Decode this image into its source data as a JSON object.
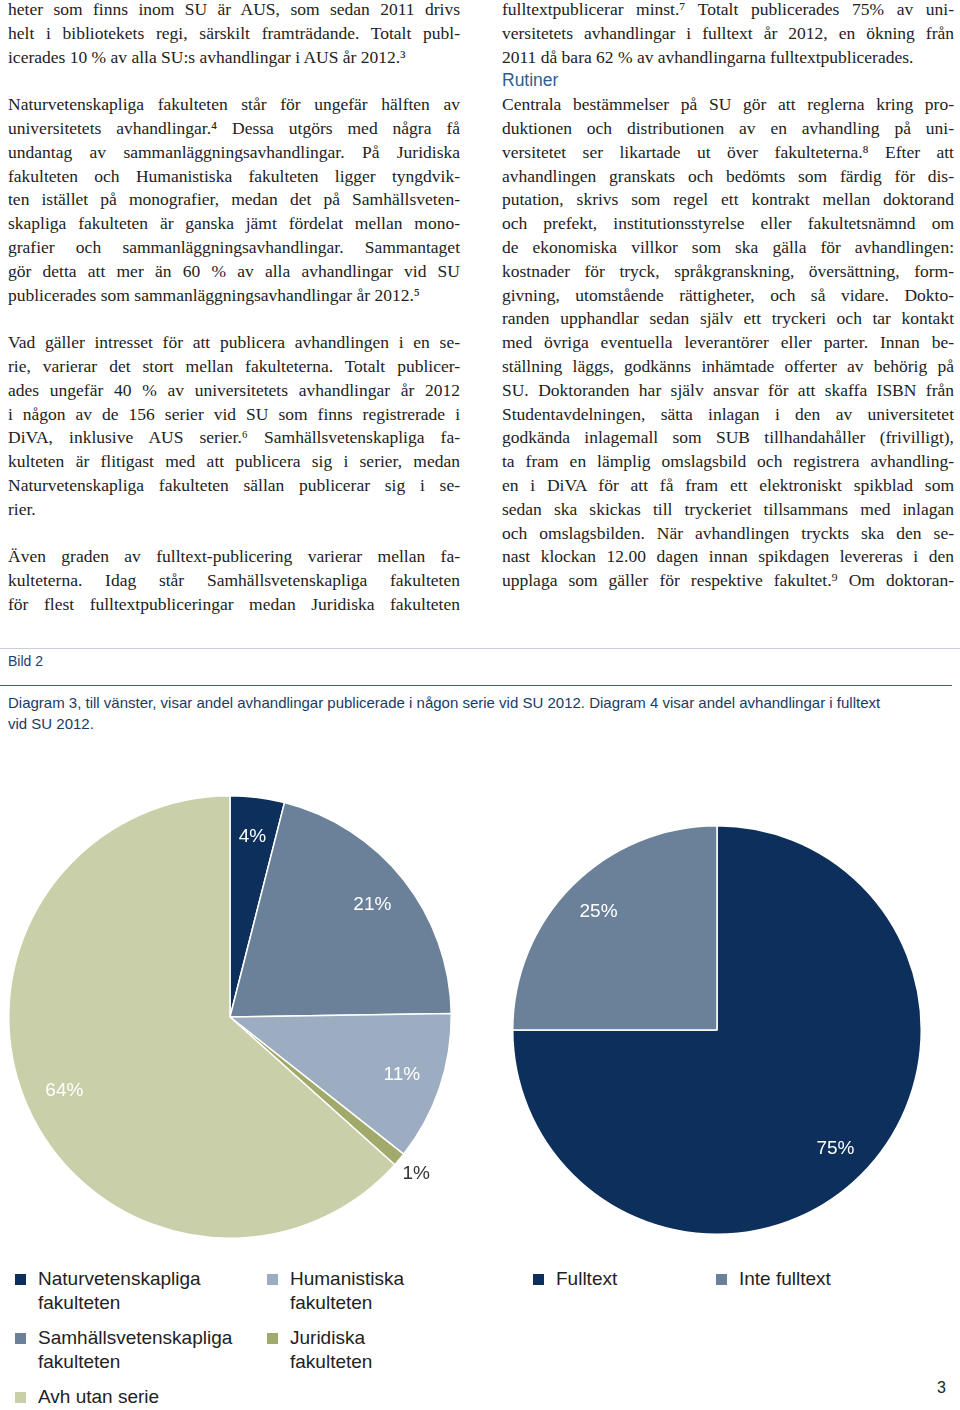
{
  "columns": [
    {
      "paragraphs": [
        {
          "lines": [
            "heter som finns inom SU är AUS, som sedan 2011 drivs",
            "helt i bibliotekets regi, särskilt framträdande. Totalt publ-",
            "icerades 10 % av alla SU:s avhandlingar i AUS år 2012.³"
          ]
        },
        {
          "lines": [
            "Naturvetenskapliga fakulteten står för ungefär hälften av",
            "universitetets avhandlingar.⁴ Dessa utgörs med några få",
            "undantag av sammanläggningsavhandlingar. På Juridiska",
            "fakulteten och Humanistiska fakulteten ligger tyngdvik-",
            "ten istället på monografier, medan det på Samhällsveten-",
            "skapliga fakulteten är ganska jämt fördelat mellan mono-",
            "grafier och sammanläggningsavhandlingar. Sammantaget",
            "gör detta att mer än 60 % av alla avhandlingar vid SU",
            "publicerades som sammanläggningsavhandlingar år 2012.⁵"
          ]
        },
        {
          "lines": [
            "Vad gäller intresset för att publicera avhandlingen i en se-",
            "rie, varierar det stort mellan fakulteterna. Totalt publicer-",
            "ades ungefär 40 % av universitetets avhandlingar år 2012",
            "i någon av de 156 serier vid SU som finns registrerade i",
            "DiVA, inklusive AUS serier.⁶ Samhällsvetenskapliga fa-",
            "kulteten är flitigast med att publicera sig i serier, medan",
            "Naturvetenskapliga fakulteten sällan publicerar sig i se-",
            "rier."
          ]
        },
        {
          "continues": true,
          "lines": [
            "Även graden av fulltext-publicering varierar mellan fa-",
            "kulteterna. Idag står Samhällsvetenskapliga fakulteten",
            "för flest fulltextpubliceringar medan Juridiska fakulteten"
          ]
        }
      ]
    },
    {
      "paragraphs": [
        {
          "lines": [
            "fulltextpublicerar minst.⁷ Totalt publicerades 75% av uni-",
            "versitetets avhandlingar i fulltext år 2012, en ökning från",
            "2011 då bara 62 % av avhandlingarna fulltextpublicerades."
          ]
        },
        {
          "heading": "Rutiner"
        },
        {
          "continues": true,
          "lines": [
            "Centrala bestämmelser på SU gör att reglerna kring pro-",
            "duktionen och distributionen av en avhandling på uni-",
            "versitetet ser likartade ut över fakulteterna.⁸ Efter att",
            "avhandlingen granskats och bedömts som färdig för dis-",
            "putation, skrivs som regel ett kontrakt mellan doktorand",
            "och prefekt, institutionsstyrelse eller fakultetsnämnd om",
            "de ekonomiska villkor som ska gälla för avhandlingen:",
            "kostnader för tryck, språkgranskning, översättning, form-",
            "givning, utomstående rättigheter, och så vidare. Dokto-",
            "randen upphandlar sedan själv ett tryckeri och tar kontakt",
            "med övriga eventuella leverantörer eller parter. Innan be-",
            "ställning läggs, godkänns inhämtade offerter av behörig på",
            "SU. Doktoranden har själv ansvar för att skaffa ISBN från",
            "Studentavdelningen, sätta inlagan i den av universitetet",
            "godkända inlagemall som SUB tillhandahåller (frivilligt),",
            "ta fram en lämplig omslagsbild och registrera avhandling-",
            "en i DiVA för att få fram ett elektroniskt spikblad som",
            "sedan ska skickas till tryckeriet tillsammans med inlagan",
            "och omslagsbilden. När avhandlingen tryckts ska den se-",
            "nast klockan 12.00 dagen innan spikdagen levereras i den",
            "upplaga som gäller för respektive fakultet.⁹ Om doktoran-"
          ]
        }
      ]
    }
  ],
  "figure": {
    "label": "Bild 2",
    "caption_lines": [
      "Diagram 3, till vänster, visar andel avhandlingar publicerade i någon serie vid SU 2012. Diagram 4 visar andel avhandlingar i fulltext",
      "vid SU 2012."
    ]
  },
  "chart_data": [
    {
      "type": "pie",
      "categories": [
        "Naturvetenskapliga fakulteten",
        "Samhällsvetenskapliga fakulteten",
        "Humanistiska fakulteten",
        "Juridiska fakulteten",
        "Avh utan serie"
      ],
      "values": [
        4,
        21,
        11,
        1,
        64
      ],
      "value_labels": [
        "4%",
        "21%",
        "11%",
        "1%",
        "64%"
      ],
      "colors": [
        "#0c2f5b",
        "#6b8099",
        "#9dadc1",
        "#a2aa6b",
        "#c9cfa9"
      ],
      "data_labels": true,
      "legend": "bottom"
    },
    {
      "type": "pie",
      "categories": [
        "Fulltext",
        "Inte fulltext"
      ],
      "values": [
        75,
        25
      ],
      "value_labels": [
        "75%",
        "25%"
      ],
      "colors": [
        "#0c2f5b",
        "#6b8099"
      ],
      "data_labels": true,
      "legend": "bottom"
    }
  ],
  "page_number": "3"
}
